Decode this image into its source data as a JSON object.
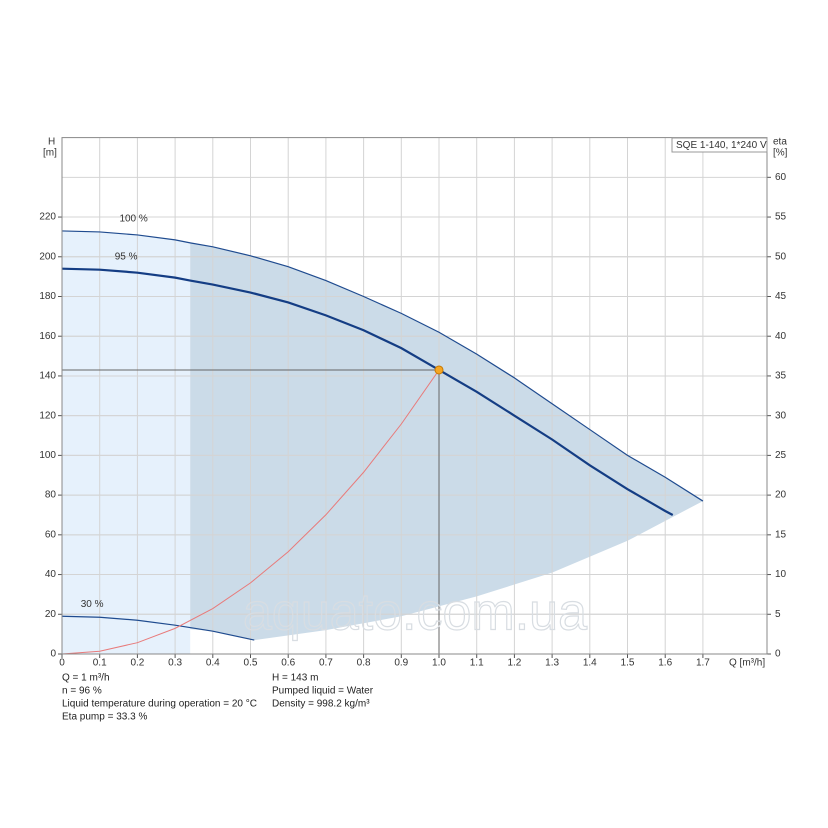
{
  "chart_data": {
    "type": "line",
    "xlabel": "Q [m³/h]",
    "ylabel": [
      "H",
      "[m]"
    ],
    "y2label": [
      "eta",
      "[%]"
    ],
    "box_label": "SQE 1-140, 1*240 V",
    "watermark": "aquato.com.ua",
    "xlim": [
      0,
      1.87
    ],
    "xticks": [
      0,
      0.1,
      0.2,
      0.3,
      0.4,
      0.5,
      0.6,
      0.7,
      0.8,
      0.9,
      {
        "value": 1.0,
        "label": "1.0"
      },
      1.1,
      1.2,
      1.3,
      1.4,
      1.5,
      1.6,
      1.7
    ],
    "ylim": [
      0,
      260
    ],
    "yticks": [
      0,
      20,
      40,
      60,
      80,
      100,
      120,
      140,
      160,
      180,
      200,
      220
    ],
    "y2lim": [
      0,
      65
    ],
    "y2ticks": [
      0,
      5,
      10,
      15,
      20,
      25,
      30,
      35,
      40,
      45,
      50,
      55,
      60
    ],
    "grid": true,
    "regions": [
      {
        "color": "#e6f1fc",
        "x": [
          0,
          0,
          0.1,
          0.2,
          0.3,
          0.34,
          0.34
        ],
        "values": [
          0,
          213,
          212.5,
          211,
          208.5,
          207,
          0
        ]
      },
      {
        "color": "#cbdbe8",
        "x": [
          0.34,
          0.4,
          0.5,
          0.6,
          0.7,
          0.8,
          0.9,
          1.0,
          1.1,
          1.2,
          1.3,
          1.4,
          1.5,
          1.6,
          1.7,
          1.5,
          1.3,
          1.1,
          0.9,
          0.7,
          0.51,
          0.4,
          0.34
        ],
        "values": [
          207,
          205,
          200.5,
          195,
          188,
          180,
          171.5,
          162,
          151,
          139,
          126,
          113,
          100,
          89,
          77,
          57,
          41,
          29,
          19,
          12,
          7,
          11.5,
          12.5
        ]
      }
    ],
    "series": [
      {
        "name": "100 %",
        "color": "#1f4b8f",
        "width": 1.2,
        "x": [
          0,
          0.1,
          0.2,
          0.3,
          0.34,
          0.4,
          0.5,
          0.6,
          0.7,
          0.8,
          0.9,
          1.0,
          1.1,
          1.2,
          1.3,
          1.4,
          1.5,
          1.6,
          1.7
        ],
        "values": [
          213,
          212.5,
          211,
          208.5,
          207,
          205,
          200.5,
          195,
          188,
          180,
          171.5,
          162,
          151,
          139,
          126,
          113,
          100,
          89,
          77
        ]
      },
      {
        "name": "95 %",
        "color": "#143d84",
        "width": 2.2,
        "x": [
          0,
          0.1,
          0.2,
          0.3,
          0.34,
          0.4,
          0.5,
          0.6,
          0.7,
          0.8,
          0.9,
          1.0,
          1.1,
          1.2,
          1.3,
          1.4,
          1.5,
          1.6,
          1.62
        ],
        "values": [
          194,
          193.5,
          192,
          189.5,
          188,
          186,
          182,
          177,
          170.5,
          163,
          154,
          143,
          132,
          120,
          108,
          95,
          83,
          72,
          70
        ]
      },
      {
        "name": "30 %",
        "color": "#1f4b8f",
        "width": 1.2,
        "x": [
          0,
          0.1,
          0.2,
          0.3,
          0.4,
          0.51
        ],
        "values": [
          19,
          18.5,
          17,
          14.5,
          11.5,
          7
        ]
      },
      {
        "color": "#e87a7a",
        "width": 1,
        "x": [
          0,
          0.1,
          0.2,
          0.3,
          0.4,
          0.5,
          0.6,
          0.7,
          0.8,
          0.9,
          1.0
        ],
        "values": [
          0,
          1.4,
          5.7,
          12.9,
          22.9,
          35.8,
          51.5,
          70.1,
          91.5,
          115.8,
          143
        ]
      }
    ],
    "duty_point": {
      "x": 1.0,
      "y": 143,
      "color": "#f5a623"
    },
    "info_left": [
      "Q = 1 m³/h",
      "n = 96 %",
      "Liquid temperature during operation = 20 °C",
      "Eta pump = 33.3 %"
    ],
    "info_right": [
      "H = 143 m",
      "Pumped liquid = Water",
      "Density = 998.2 kg/m³"
    ]
  }
}
